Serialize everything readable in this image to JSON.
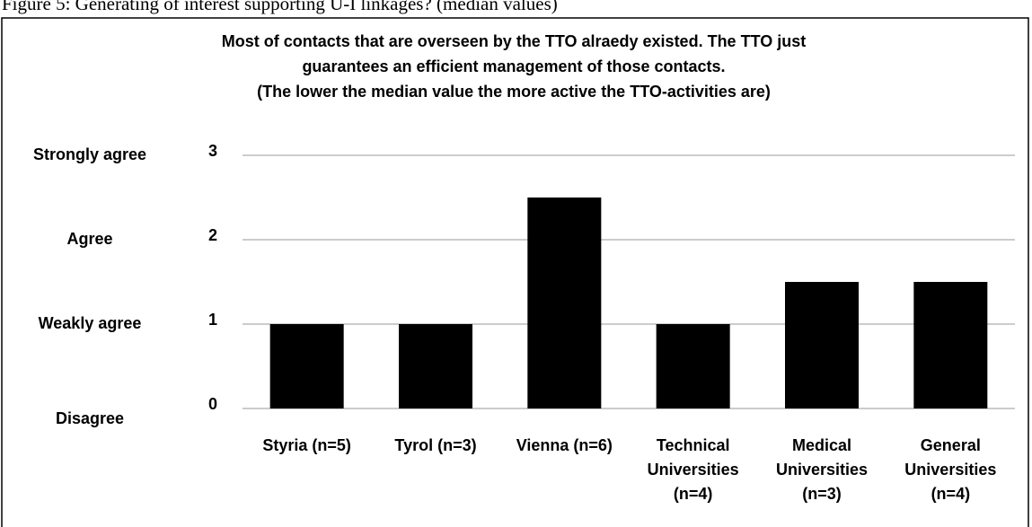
{
  "caption": "Figure 5: Generating of interest supporting U-I linkages? (median values)",
  "chart_data": {
    "type": "bar",
    "title": [
      "Most of contacts that are overseen by the TTO alraedy existed. The TTO just",
      "guarantees an efficient management of those contacts.",
      "(The lower the median value the more active the TTO-activities are)"
    ],
    "categories": [
      "Styria (n=5)",
      "Tyrol (n=3)",
      "Vienna (n=6)",
      "Technical Universities (n=4)",
      "Medical Universities (n=3)",
      "General Universities (n=4)"
    ],
    "values": [
      1,
      1,
      2.5,
      1,
      1.5,
      1.5
    ],
    "color": "#000000",
    "ylim": [
      0,
      3
    ],
    "yticks": [
      0,
      1,
      2,
      3
    ],
    "ytick_names": [
      "Disagree",
      "Weakly agree",
      "Agree",
      "Strongly agree"
    ],
    "grid": true
  }
}
